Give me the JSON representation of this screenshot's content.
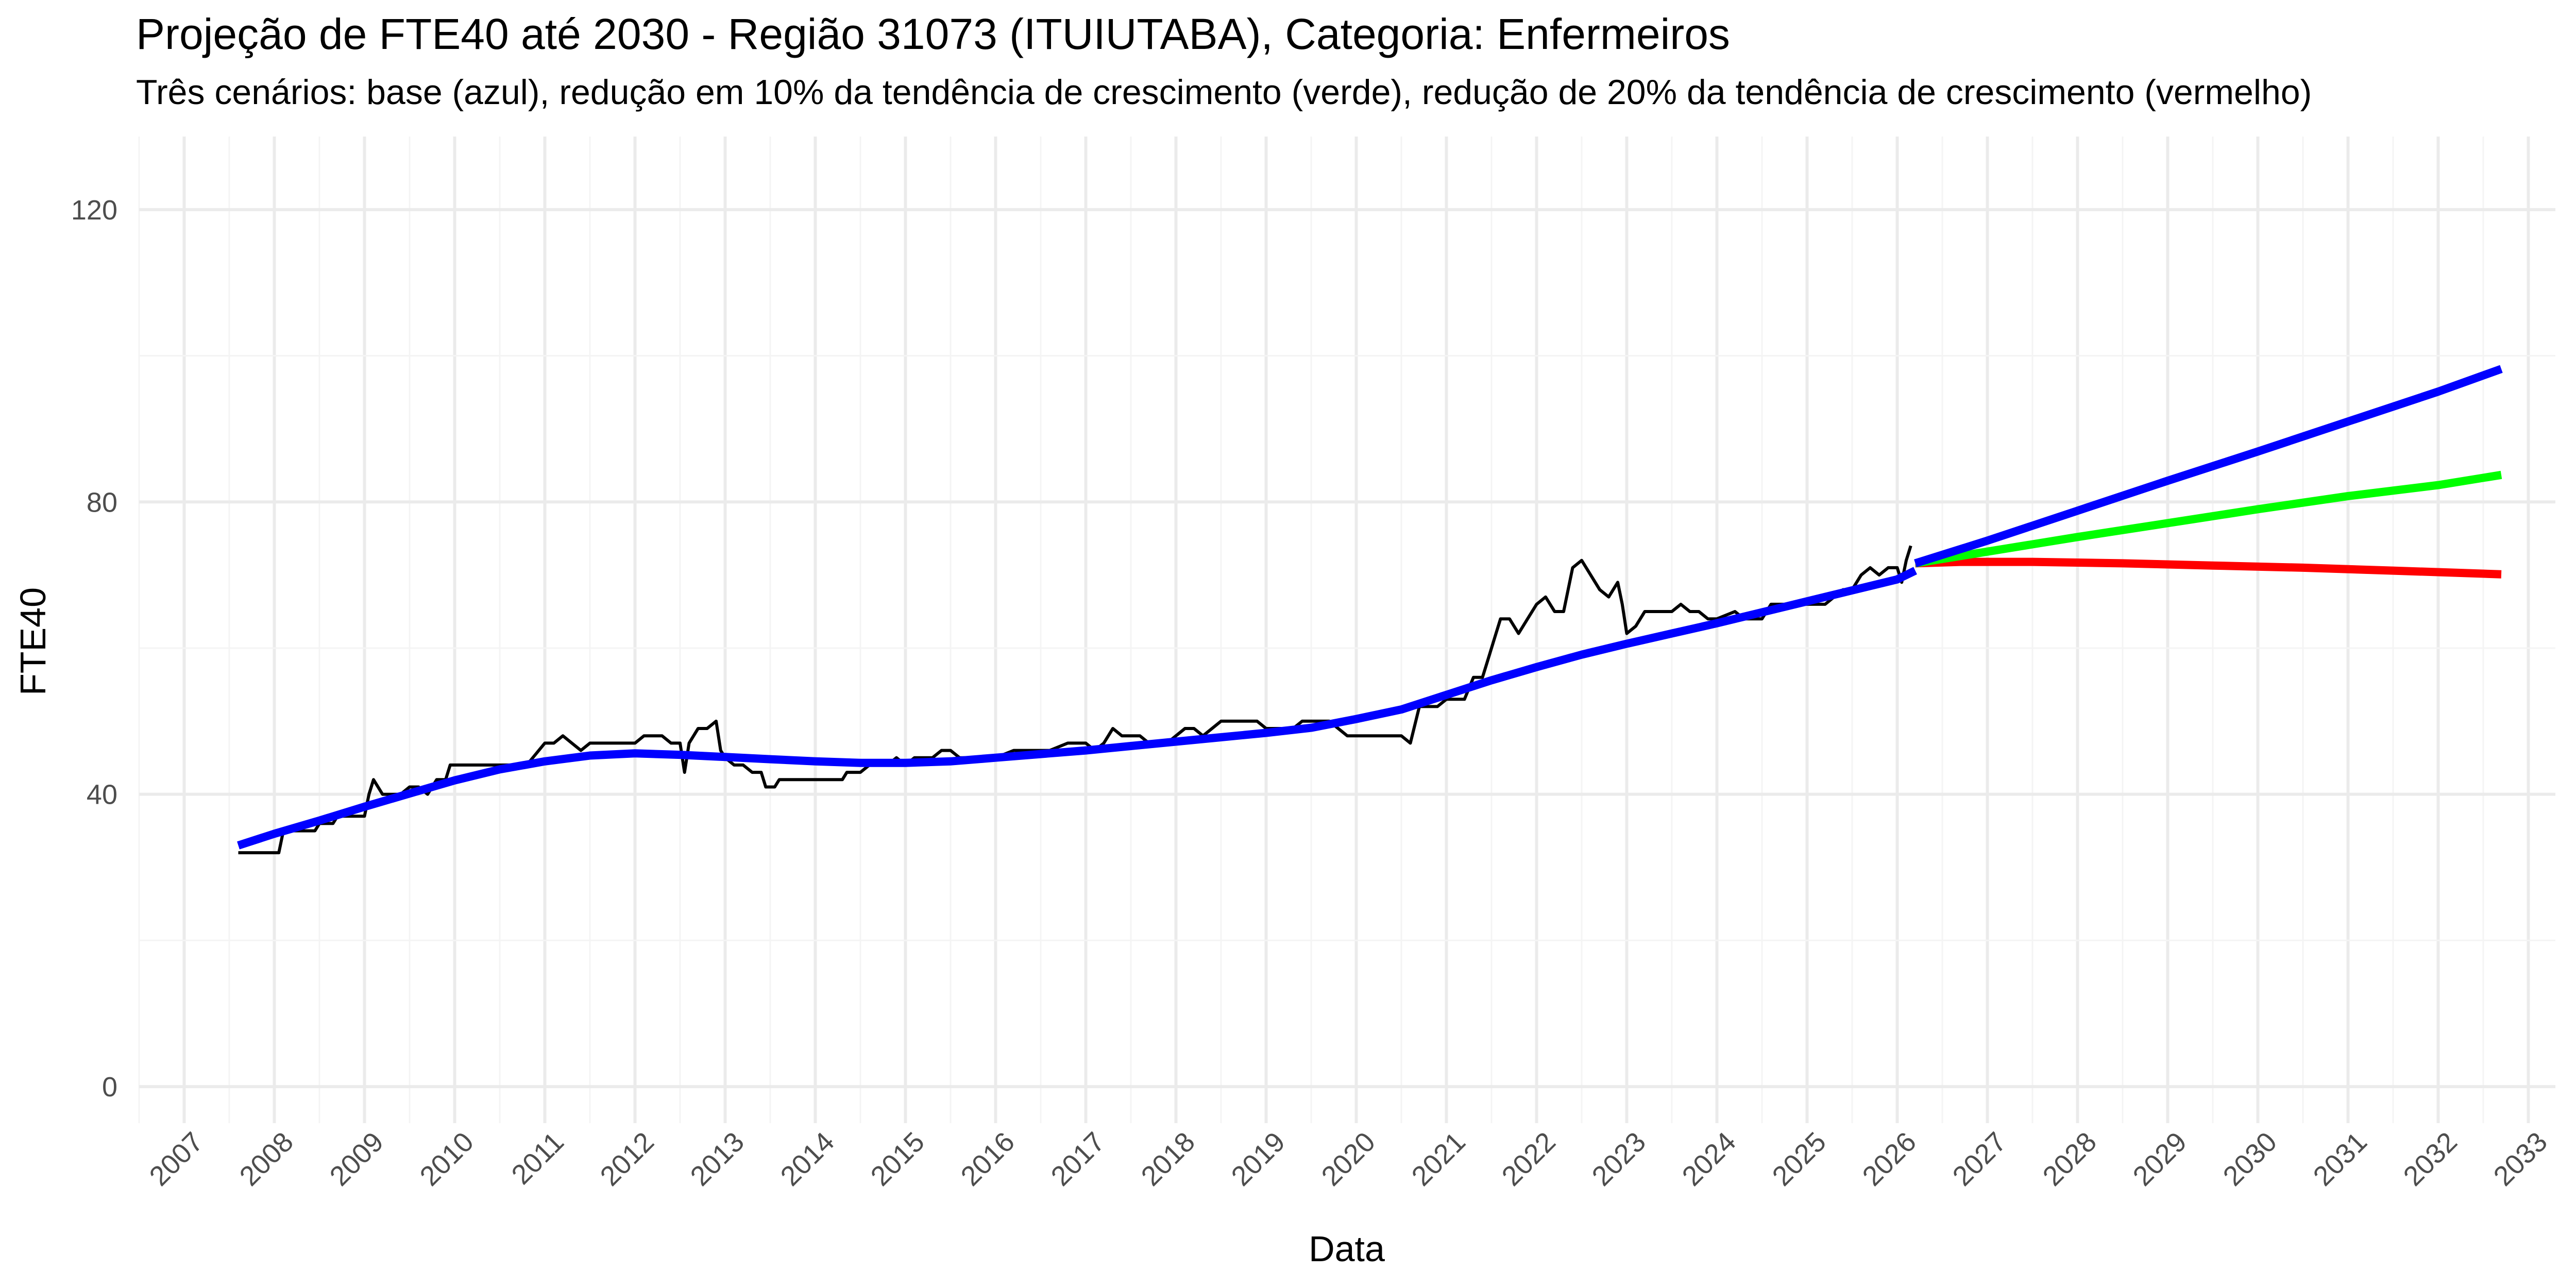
{
  "chart_data": {
    "type": "line",
    "title": "Projeção de FTE40 até 2030 - Região 31073 (ITUIUTABA), Categoria: Enfermeiros",
    "subtitle": "Três cenários: base (azul), redução em 10% da tendência de crescimento (verde), redução de 20% da tendência de crescimento (vermelho)",
    "xlabel": "Data",
    "ylabel": "FTE40",
    "xlim": [
      2006.5,
      2033.3
    ],
    "ylim": [
      -5,
      130
    ],
    "x_ticks": [
      "2007",
      "2008",
      "2009",
      "2010",
      "2011",
      "2012",
      "2013",
      "2014",
      "2015",
      "2016",
      "2017",
      "2018",
      "2019",
      "2020",
      "2021",
      "2022",
      "2023",
      "2024",
      "2025",
      "2026",
      "2027",
      "2028",
      "2029",
      "2030",
      "2031",
      "2032",
      "2033"
    ],
    "y_ticks": [
      0,
      40,
      80,
      120
    ],
    "grid": true,
    "legend": "none",
    "series": [
      {
        "color": "#000000",
        "values": [
          [
            2007.6,
            32
          ],
          [
            2007.9,
            32
          ],
          [
            2008.05,
            32
          ],
          [
            2008.1,
            35
          ],
          [
            2008.3,
            35
          ],
          [
            2008.45,
            35
          ],
          [
            2008.5,
            36
          ],
          [
            2008.65,
            36
          ],
          [
            2008.7,
            37
          ],
          [
            2008.9,
            37
          ],
          [
            2009.0,
            37
          ],
          [
            2009.05,
            40
          ],
          [
            2009.1,
            42
          ],
          [
            2009.2,
            40
          ],
          [
            2009.3,
            40
          ],
          [
            2009.4,
            40
          ],
          [
            2009.5,
            41
          ],
          [
            2009.6,
            41
          ],
          [
            2009.7,
            40
          ],
          [
            2009.8,
            42
          ],
          [
            2009.9,
            42
          ],
          [
            2009.95,
            44
          ],
          [
            2010.2,
            44
          ],
          [
            2010.4,
            44
          ],
          [
            2010.6,
            44
          ],
          [
            2010.8,
            44
          ],
          [
            2011.0,
            47
          ],
          [
            2011.1,
            47
          ],
          [
            2011.2,
            48
          ],
          [
            2011.3,
            47
          ],
          [
            2011.4,
            46
          ],
          [
            2011.5,
            47
          ],
          [
            2011.8,
            47
          ],
          [
            2012.0,
            47
          ],
          [
            2012.1,
            48
          ],
          [
            2012.3,
            48
          ],
          [
            2012.4,
            47
          ],
          [
            2012.5,
            47
          ],
          [
            2012.55,
            43
          ],
          [
            2012.6,
            47
          ],
          [
            2012.7,
            49
          ],
          [
            2012.8,
            49
          ],
          [
            2012.9,
            50
          ],
          [
            2012.95,
            46
          ],
          [
            2013.0,
            45
          ],
          [
            2013.1,
            44
          ],
          [
            2013.2,
            44
          ],
          [
            2013.3,
            43
          ],
          [
            2013.4,
            43
          ],
          [
            2013.45,
            41
          ],
          [
            2013.55,
            41
          ],
          [
            2013.6,
            42
          ],
          [
            2013.8,
            42
          ],
          [
            2014.0,
            42
          ],
          [
            2014.2,
            42
          ],
          [
            2014.3,
            42
          ],
          [
            2014.35,
            43
          ],
          [
            2014.5,
            43
          ],
          [
            2014.6,
            44
          ],
          [
            2014.7,
            44
          ],
          [
            2014.8,
            44
          ],
          [
            2014.9,
            45
          ],
          [
            2015.0,
            44
          ],
          [
            2015.1,
            45
          ],
          [
            2015.3,
            45
          ],
          [
            2015.4,
            46
          ],
          [
            2015.5,
            46
          ],
          [
            2015.6,
            45
          ],
          [
            2015.8,
            45
          ],
          [
            2016.0,
            45
          ],
          [
            2016.2,
            46
          ],
          [
            2016.4,
            46
          ],
          [
            2016.6,
            46
          ],
          [
            2016.8,
            47
          ],
          [
            2017.0,
            47
          ],
          [
            2017.1,
            46
          ],
          [
            2017.2,
            47
          ],
          [
            2017.3,
            49
          ],
          [
            2017.4,
            48
          ],
          [
            2017.6,
            48
          ],
          [
            2017.7,
            47
          ],
          [
            2017.9,
            47
          ],
          [
            2018.0,
            48
          ],
          [
            2018.1,
            49
          ],
          [
            2018.2,
            49
          ],
          [
            2018.3,
            48
          ],
          [
            2018.4,
            49
          ],
          [
            2018.5,
            50
          ],
          [
            2018.7,
            50
          ],
          [
            2018.9,
            50
          ],
          [
            2019.0,
            49
          ],
          [
            2019.2,
            49
          ],
          [
            2019.3,
            49
          ],
          [
            2019.4,
            50
          ],
          [
            2019.6,
            50
          ],
          [
            2019.7,
            50
          ],
          [
            2019.8,
            49
          ],
          [
            2019.9,
            48
          ],
          [
            2020.1,
            48
          ],
          [
            2020.3,
            48
          ],
          [
            2020.5,
            48
          ],
          [
            2020.6,
            47
          ],
          [
            2020.7,
            52
          ],
          [
            2020.9,
            52
          ],
          [
            2021.0,
            53
          ],
          [
            2021.2,
            53
          ],
          [
            2021.3,
            56
          ],
          [
            2021.4,
            56
          ],
          [
            2021.45,
            58
          ],
          [
            2021.55,
            62
          ],
          [
            2021.6,
            64
          ],
          [
            2021.7,
            64
          ],
          [
            2021.8,
            62
          ],
          [
            2021.9,
            64
          ],
          [
            2022.0,
            66
          ],
          [
            2022.1,
            67
          ],
          [
            2022.2,
            65
          ],
          [
            2022.3,
            65
          ],
          [
            2022.4,
            71
          ],
          [
            2022.5,
            72
          ],
          [
            2022.6,
            70
          ],
          [
            2022.7,
            68
          ],
          [
            2022.8,
            67
          ],
          [
            2022.9,
            69
          ],
          [
            2022.95,
            66
          ],
          [
            2023.0,
            62
          ],
          [
            2023.1,
            63
          ],
          [
            2023.2,
            65
          ],
          [
            2023.3,
            65
          ],
          [
            2023.4,
            65
          ],
          [
            2023.5,
            65
          ],
          [
            2023.6,
            66
          ],
          [
            2023.7,
            65
          ],
          [
            2023.8,
            65
          ],
          [
            2023.9,
            64
          ],
          [
            2024.0,
            64
          ],
          [
            2024.2,
            65
          ],
          [
            2024.3,
            64
          ],
          [
            2024.4,
            64
          ],
          [
            2024.5,
            64
          ],
          [
            2024.6,
            66
          ],
          [
            2024.8,
            66
          ],
          [
            2025.0,
            66
          ],
          [
            2025.2,
            66
          ],
          [
            2025.3,
            67
          ],
          [
            2025.4,
            68
          ],
          [
            2025.5,
            68
          ],
          [
            2025.6,
            70
          ],
          [
            2025.7,
            71
          ],
          [
            2025.8,
            70
          ],
          [
            2025.9,
            71
          ],
          [
            2026.0,
            71
          ],
          [
            2026.05,
            69
          ],
          [
            2026.1,
            72
          ],
          [
            2026.15,
            74
          ]
        ]
      },
      {
        "color": "#0000ff",
        "values": [
          [
            2007.6,
            33
          ],
          [
            2008.0,
            34.6
          ],
          [
            2008.5,
            36.4
          ],
          [
            2009.0,
            38.3
          ],
          [
            2009.5,
            40.1
          ],
          [
            2010.0,
            41.9
          ],
          [
            2010.5,
            43.4
          ],
          [
            2011.0,
            44.5
          ],
          [
            2011.5,
            45.3
          ],
          [
            2012.0,
            45.6
          ],
          [
            2012.5,
            45.4
          ],
          [
            2013.0,
            45.1
          ],
          [
            2013.5,
            44.8
          ],
          [
            2014.0,
            44.5
          ],
          [
            2014.5,
            44.3
          ],
          [
            2015.0,
            44.3
          ],
          [
            2015.5,
            44.5
          ],
          [
            2016.0,
            45.0
          ],
          [
            2016.5,
            45.5
          ],
          [
            2017.0,
            46.0
          ],
          [
            2017.5,
            46.6
          ],
          [
            2018.0,
            47.2
          ],
          [
            2018.5,
            47.8
          ],
          [
            2019.0,
            48.4
          ],
          [
            2019.5,
            49.1
          ],
          [
            2020.0,
            50.3
          ],
          [
            2020.5,
            51.6
          ],
          [
            2021.0,
            53.6
          ],
          [
            2021.5,
            55.6
          ],
          [
            2022.0,
            57.4
          ],
          [
            2022.5,
            59.1
          ],
          [
            2023.0,
            60.6
          ],
          [
            2023.5,
            62.0
          ],
          [
            2024.0,
            63.4
          ],
          [
            2024.5,
            64.9
          ],
          [
            2025.0,
            66.4
          ],
          [
            2025.5,
            67.9
          ],
          [
            2026.0,
            69.4
          ],
          [
            2026.2,
            70.6
          ]
        ]
      },
      {
        "color": "#0000ff",
        "values": [
          [
            2026.2,
            71.6
          ],
          [
            2027.0,
            74.7
          ],
          [
            2028.0,
            78.8
          ],
          [
            2029.0,
            82.9
          ],
          [
            2030.0,
            86.9
          ],
          [
            2031.0,
            91.0
          ],
          [
            2032.0,
            95.1
          ],
          [
            2032.7,
            98.2
          ]
        ]
      },
      {
        "color": "#00ff00",
        "values": [
          [
            2026.2,
            71.6
          ],
          [
            2027.0,
            73.2
          ],
          [
            2028.0,
            75.2
          ],
          [
            2029.0,
            77.1
          ],
          [
            2030.0,
            79.0
          ],
          [
            2031.0,
            80.8
          ],
          [
            2032.0,
            82.3
          ],
          [
            2032.7,
            83.7
          ]
        ]
      },
      {
        "color": "#ff0000",
        "values": [
          [
            2026.2,
            71.6
          ],
          [
            2026.7,
            71.8
          ],
          [
            2027.5,
            71.8
          ],
          [
            2028.5,
            71.6
          ],
          [
            2029.5,
            71.3
          ],
          [
            2030.5,
            71.0
          ],
          [
            2031.5,
            70.6
          ],
          [
            2032.7,
            70.1
          ]
        ]
      }
    ]
  }
}
